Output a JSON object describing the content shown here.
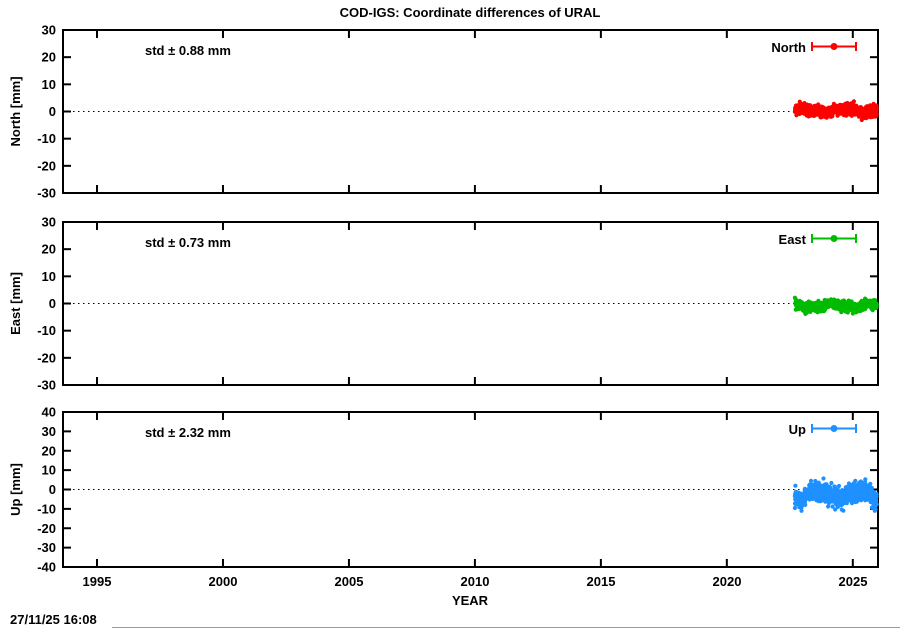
{
  "chart_data": {
    "type": "scatter",
    "title": "COD-IGS: Coordinate differences of URAL",
    "xlabel": "YEAR",
    "x_ticks": [
      "1995",
      "2000",
      "2005",
      "2010",
      "2015",
      "2020",
      "2025"
    ],
    "x_range": [
      1993.65,
      2026.0
    ],
    "grid": "off",
    "zero_line": "dotted",
    "legend_position": "top-right-inside",
    "panels": [
      {
        "name": "North",
        "ylabel": "North [mm]",
        "ylim": [
          -30,
          30
        ],
        "yticks": [
          "30",
          "20",
          "10",
          "0",
          "-10",
          "-20",
          "-30"
        ],
        "std_label": "std ± 0.88 mm",
        "std_mm": 0.88,
        "legend_label": "North",
        "color": "#ff0000",
        "data_cluster": {
          "x_start": 2022.7,
          "x_end": 2025.95,
          "y_mean": 0.4,
          "y_sigma": 1.1,
          "y_wiggle": 0.8,
          "y_min_seen": -3.5,
          "y_max_seen": 5.0
        }
      },
      {
        "name": "East",
        "ylabel": "East [mm]",
        "ylim": [
          -30,
          30
        ],
        "yticks": [
          "30",
          "20",
          "10",
          "0",
          "-10",
          "-20",
          "-30"
        ],
        "std_label": "std ± 0.73 mm",
        "std_mm": 0.73,
        "legend_label": "East",
        "color": "#00bb00",
        "data_cluster": {
          "x_start": 2022.7,
          "x_end": 2025.95,
          "y_mean": -0.9,
          "y_sigma": 0.9,
          "y_wiggle": 0.6,
          "y_min_seen": -4.0,
          "y_max_seen": 2.5
        }
      },
      {
        "name": "Up",
        "ylabel": "Up [mm]",
        "ylim": [
          -40,
          40
        ],
        "yticks": [
          "40",
          "30",
          "20",
          "10",
          "0",
          "-10",
          "-20",
          "-30",
          "-40"
        ],
        "std_label": "std ± 2.32 mm",
        "std_mm": 2.32,
        "legend_label": "Up",
        "color": "#1e90ff",
        "data_cluster": {
          "x_start": 2022.7,
          "x_end": 2025.95,
          "y_mean": -2.6,
          "y_sigma": 2.6,
          "y_wiggle": 2.0,
          "y_min_seen": -11.0,
          "y_max_seen": 6.0
        }
      }
    ]
  },
  "footer": {
    "timestamp": "27/11/25 16:08"
  }
}
